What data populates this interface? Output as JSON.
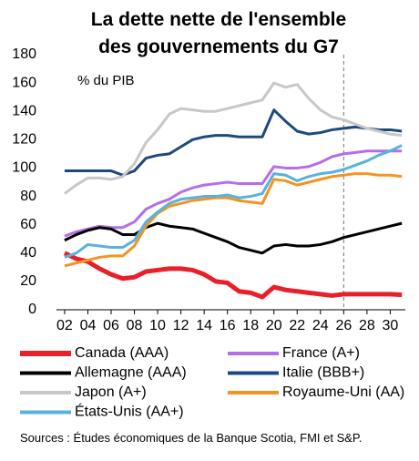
{
  "chart_data": {
    "type": "line",
    "title": "La dette nette de l'ensemble des gouvernements du G7",
    "y_label": "% du PIB",
    "x": [
      2002,
      2003,
      2004,
      2005,
      2006,
      2007,
      2008,
      2009,
      2010,
      2011,
      2012,
      2013,
      2014,
      2015,
      2016,
      2017,
      2018,
      2019,
      2020,
      2021,
      2022,
      2023,
      2024,
      2025,
      2026,
      2027,
      2028,
      2029,
      2030,
      2031
    ],
    "series": [
      {
        "name": "Canada (AAA)",
        "color": "#e8202a",
        "width": 5,
        "values": [
          40,
          36,
          34,
          29,
          25,
          22,
          23,
          27,
          28,
          29,
          29,
          28,
          25,
          20,
          19,
          13,
          12,
          9,
          16,
          14,
          13,
          12,
          11,
          10,
          11,
          11,
          11,
          11,
          11,
          10.5
        ]
      },
      {
        "name": "France (A+)",
        "color": "#b46ee6",
        "width": 3,
        "values": [
          52,
          55,
          57,
          59,
          58,
          58,
          62,
          71,
          75,
          78,
          83,
          86,
          88,
          89,
          90,
          89,
          89,
          89,
          101,
          100,
          100,
          101,
          104,
          108,
          110,
          111,
          112,
          112,
          112,
          112
        ]
      },
      {
        "name": "Allemagne (AAA)",
        "color": "#000000",
        "width": 3,
        "values": [
          49,
          53,
          56,
          58,
          57,
          53,
          53,
          58,
          61,
          59,
          58,
          57,
          54,
          51,
          48,
          44,
          42,
          40,
          45,
          46,
          45,
          45,
          46,
          48,
          51,
          53,
          55,
          57,
          59,
          61
        ]
      },
      {
        "name": "Italie (BBB+)",
        "color": "#1d4a7c",
        "width": 3,
        "values": [
          98,
          98,
          98,
          98,
          98,
          95,
          98,
          107,
          109,
          110,
          115,
          120,
          122,
          123,
          123,
          122,
          122,
          122,
          141,
          133,
          126,
          124,
          125,
          127,
          128,
          129,
          128,
          127,
          127,
          126
        ]
      },
      {
        "name": "Japon (A+)",
        "color": "#c8c8c8",
        "width": 3,
        "values": [
          82,
          88,
          93,
          93,
          92,
          94,
          103,
          118,
          127,
          138,
          142,
          141,
          140,
          140,
          142,
          144,
          146,
          148,
          160,
          157,
          159,
          149,
          141,
          136,
          134,
          131,
          128,
          126,
          124,
          123
        ]
      },
      {
        "name": "Royaume-Uni (AA)",
        "color": "#f39422",
        "width": 3,
        "values": [
          31,
          33,
          35,
          37,
          38,
          38,
          45,
          59,
          68,
          73,
          75,
          77,
          78,
          79,
          79,
          77,
          76,
          75,
          92,
          91,
          88,
          90,
          92,
          94,
          95,
          96,
          96,
          95,
          95,
          94
        ]
      },
      {
        "name": "États-Unis (AA+)",
        "color": "#58b2dc",
        "width": 3,
        "values": [
          37,
          40,
          46,
          45,
          44,
          44,
          49,
          62,
          69,
          75,
          78,
          79,
          80,
          80,
          81,
          79,
          80,
          82,
          96,
          95,
          91,
          94,
          96,
          97,
          99,
          102,
          105,
          109,
          112,
          116
        ]
      }
    ],
    "xlim": [
      2001.3,
      2031.3
    ],
    "xticks": [
      {
        "value": 2002,
        "label": "02"
      },
      {
        "value": 2004,
        "label": "04"
      },
      {
        "value": 2006,
        "label": "06"
      },
      {
        "value": 2008,
        "label": "08"
      },
      {
        "value": 2010,
        "label": "10"
      },
      {
        "value": 2012,
        "label": "12"
      },
      {
        "value": 2014,
        "label": "14"
      },
      {
        "value": 2016,
        "label": "16"
      },
      {
        "value": 2018,
        "label": "18"
      },
      {
        "value": 2020,
        "label": "20"
      },
      {
        "value": 2022,
        "label": "22"
      },
      {
        "value": 2024,
        "label": "24"
      },
      {
        "value": 2026,
        "label": "26"
      },
      {
        "value": 2028,
        "label": "28"
      },
      {
        "value": 2030,
        "label": "30"
      }
    ],
    "ylim": [
      0,
      180
    ],
    "yticks": [
      0,
      20,
      40,
      60,
      80,
      100,
      120,
      140,
      160,
      180
    ],
    "forecast_line": 2026,
    "grid": false,
    "source": "Sources : Études économiques de la Banque Scotia, FMI et S&P."
  }
}
